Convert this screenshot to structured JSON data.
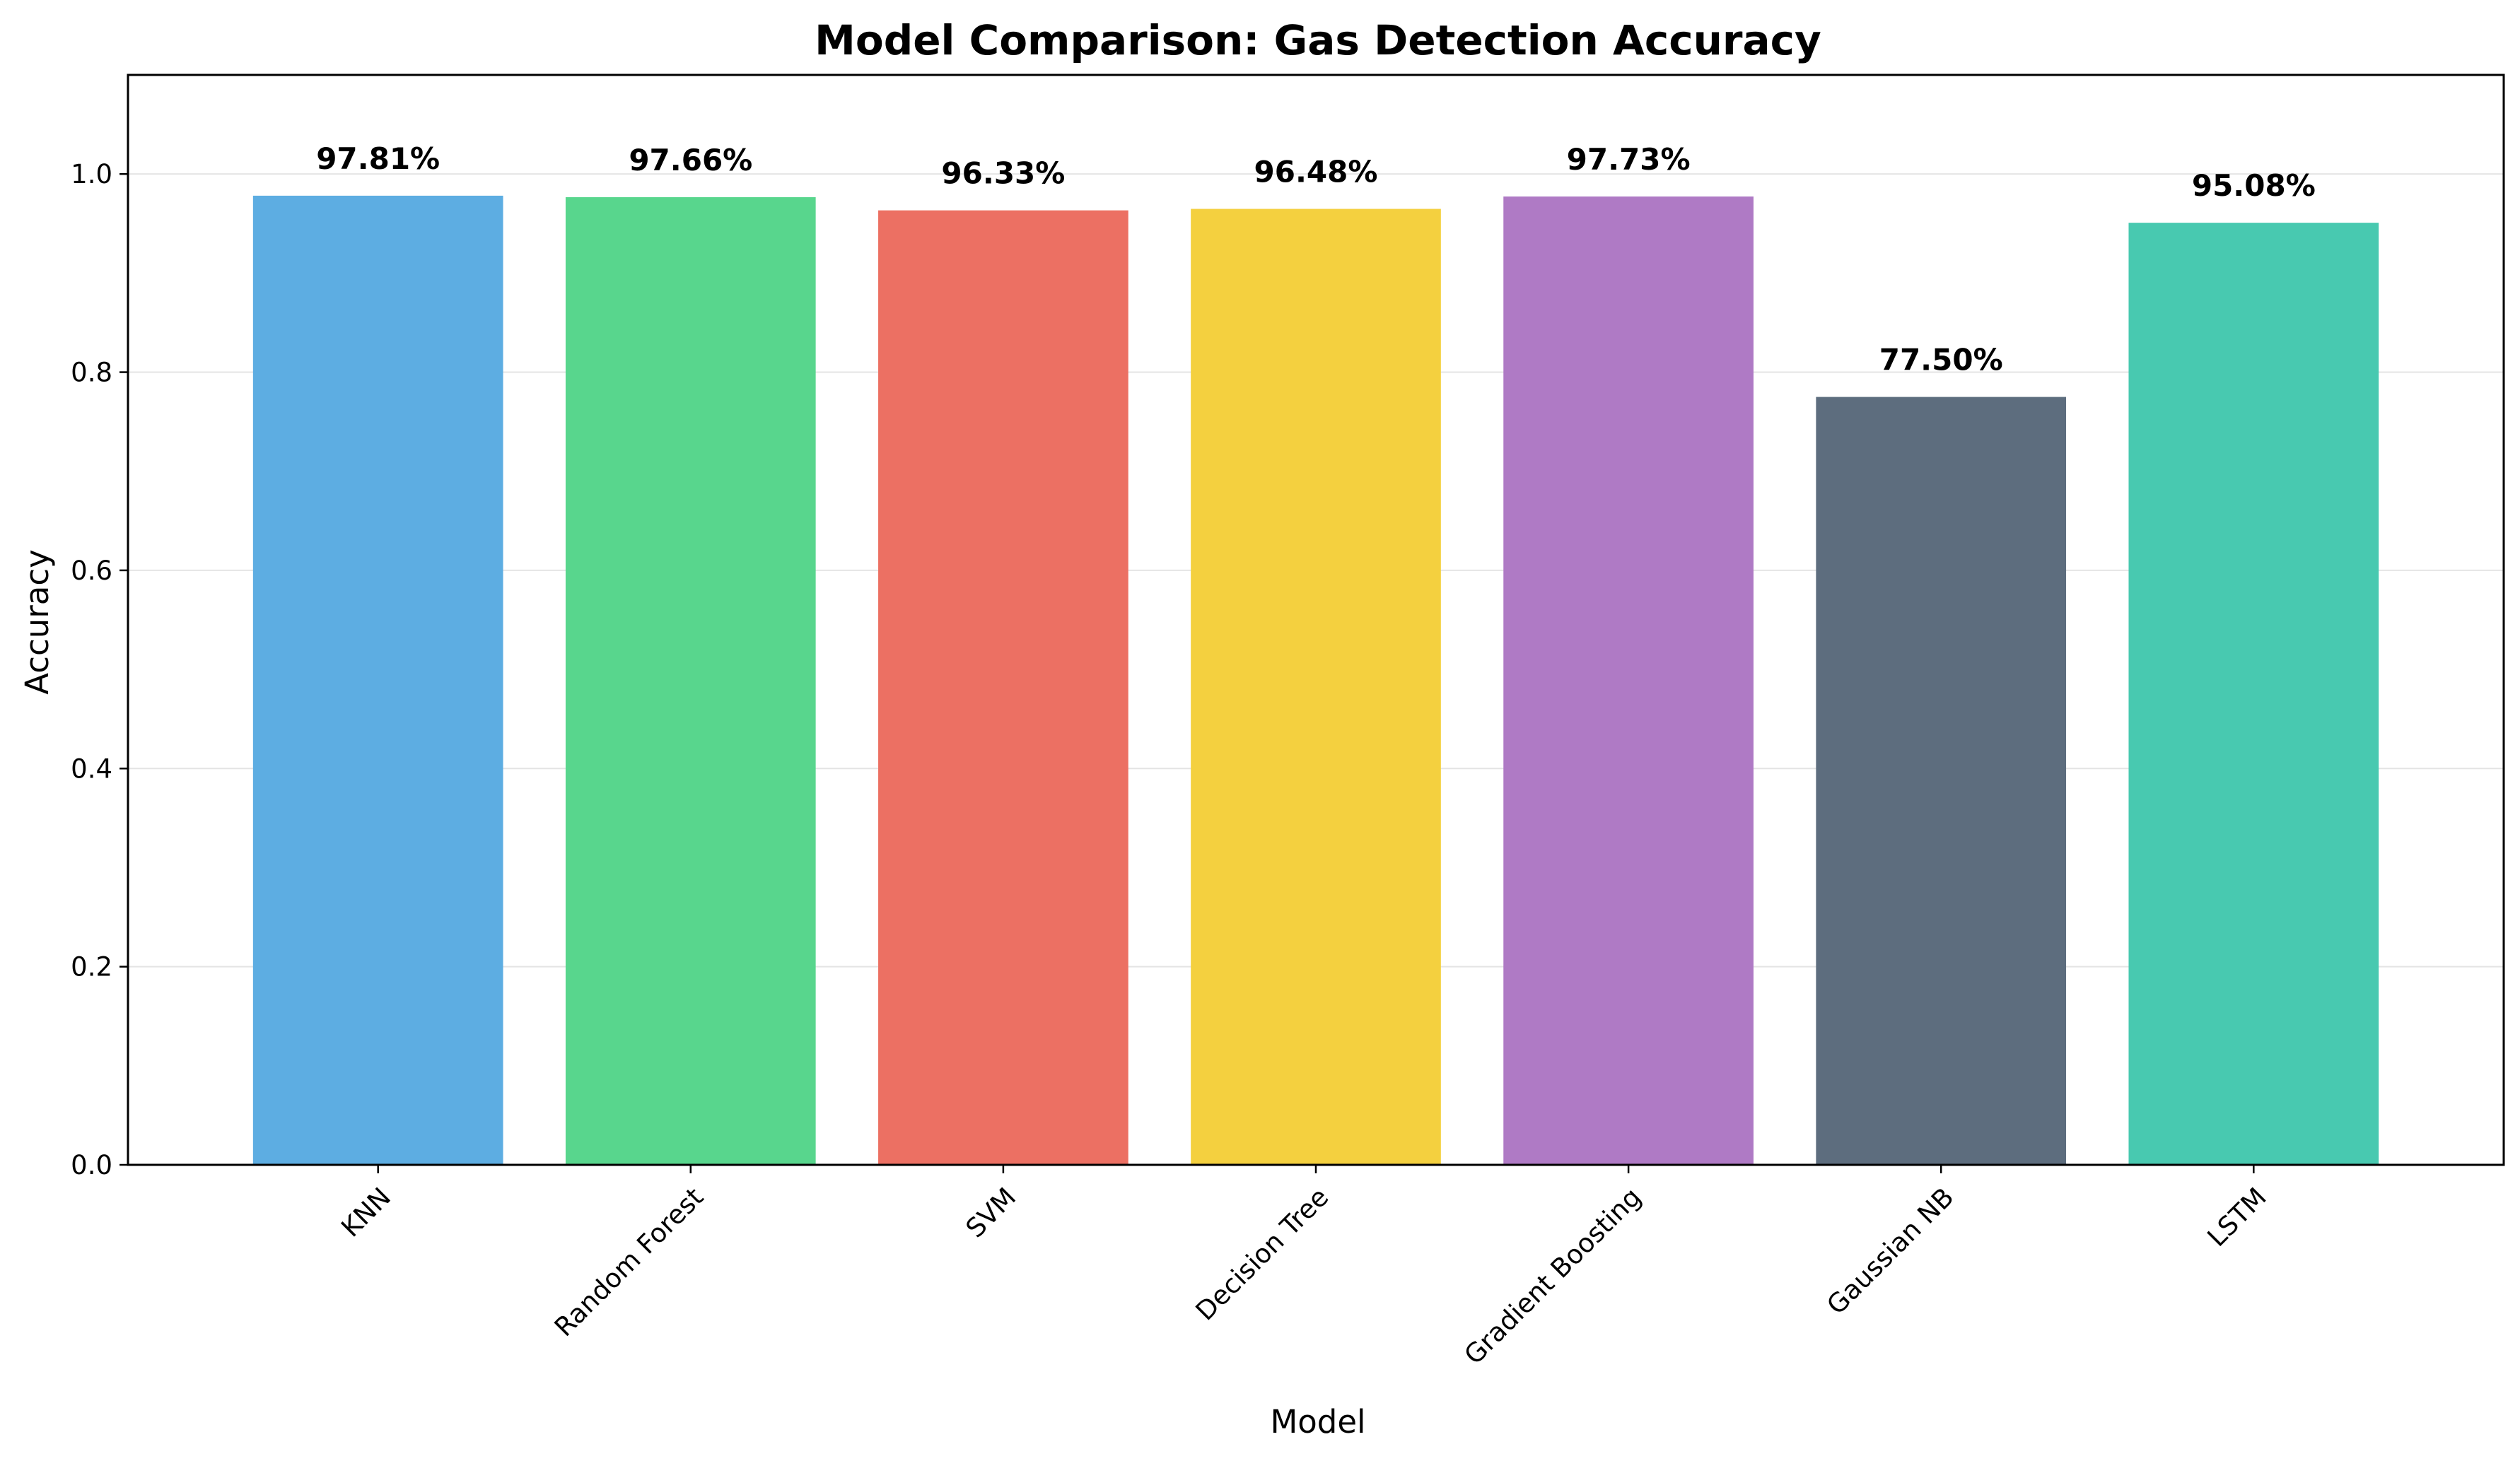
{
  "chart_data": {
    "type": "bar",
    "title": "Model Comparison: Gas Detection Accuracy",
    "xlabel": "Model",
    "ylabel": "Accuracy",
    "ylim": [
      0,
      1.1
    ],
    "yticks": [
      0.0,
      0.2,
      0.4,
      0.6,
      0.8,
      1.0
    ],
    "ytick_labels": [
      "0.0",
      "0.2",
      "0.4",
      "0.6",
      "0.8",
      "1.0"
    ],
    "grid": "horizontal",
    "categories": [
      "KNN",
      "Random Forest",
      "SVM",
      "Decision Tree",
      "Gradient Boosting",
      "Gaussian NB",
      "LSTM"
    ],
    "values": [
      0.9781,
      0.9766,
      0.9633,
      0.9648,
      0.9773,
      0.775,
      0.9508
    ],
    "data_labels": [
      "97.81%",
      "97.66%",
      "96.33%",
      "96.48%",
      "97.73%",
      "77.50%",
      "95.08%"
    ],
    "colors": [
      "#5dade2",
      "#58d68d",
      "#ec7063",
      "#f4d03f",
      "#af7ac5",
      "#5d6d7e",
      "#48c9b0"
    ]
  }
}
